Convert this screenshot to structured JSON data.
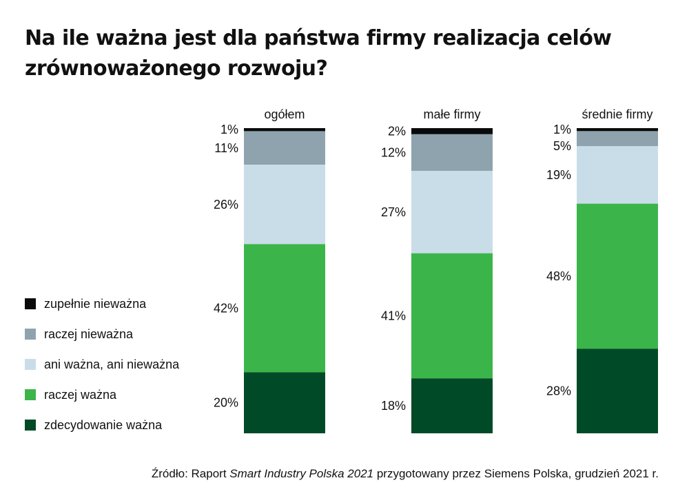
{
  "title": "Na ile ważna jest dla państwa firmy realizacja celów zrównoważonego rozwoju?",
  "source": {
    "prefix": "Źródło: Raport ",
    "italic": "Smart Industry Polska 2021",
    "suffix": " przygotowany przez Siemens Polska, grudzień 2021 r."
  },
  "colors": {
    "zupelnie_niewazna": "#0a0a0a",
    "raczej_niewazna": "#8ea3ad",
    "ani_wazna": "#c9dde9",
    "raczej_wazna": "#3bb54a",
    "zdecydowanie_wazna": "#004a27"
  },
  "chart_data": {
    "type": "bar",
    "stacked": true,
    "normalized": true,
    "legend_position": "left",
    "categories": [
      "ogółem",
      "małe firmy",
      "średnie firmy"
    ],
    "series": [
      {
        "name": "zupełnie nieważna",
        "color": "#0a0a0a",
        "values": [
          1,
          2,
          1
        ],
        "labels": [
          "1%",
          "2%",
          "1%"
        ]
      },
      {
        "name": "raczej nieważna",
        "color": "#8ea3ad",
        "values": [
          11,
          12,
          5
        ],
        "labels": [
          "11%",
          "12%",
          "5%"
        ]
      },
      {
        "name": "ani ważna, ani nieważna",
        "color": "#c9dde9",
        "values": [
          26,
          27,
          19
        ],
        "labels": [
          "26%",
          "27%",
          "19%"
        ]
      },
      {
        "name": "raczej ważna",
        "color": "#3bb54a",
        "values": [
          42,
          41,
          48
        ],
        "labels": [
          "42%",
          "41%",
          "48%"
        ]
      },
      {
        "name": "zdecydowanie ważna",
        "color": "#004a27",
        "values": [
          20,
          18,
          28
        ],
        "labels": [
          "20%",
          "18%",
          "28%"
        ]
      }
    ]
  }
}
